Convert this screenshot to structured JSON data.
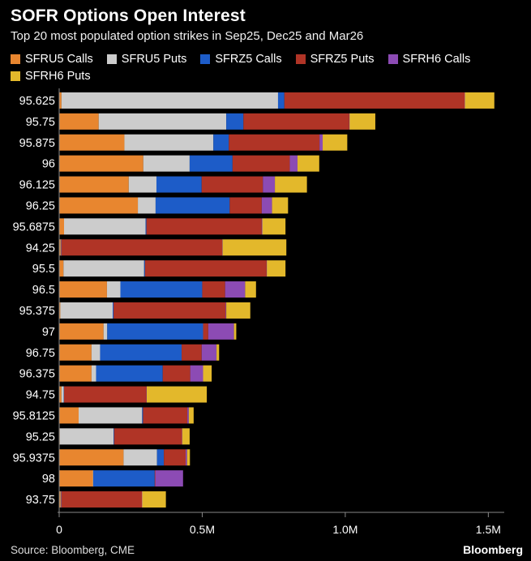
{
  "chart_data": {
    "type": "bar",
    "orientation": "horizontal",
    "stacked": true,
    "title": "SOFR Options Open Interest",
    "subtitle": "Top 20 most populated option strikes in Sep25, Dec25 and Mar26",
    "categories": [
      "95.625",
      "95.75",
      "95.875",
      "96",
      "96.125",
      "96.25",
      "95.6875",
      "94.25",
      "95.5",
      "96.5",
      "95.375",
      "97",
      "96.75",
      "96.375",
      "94.75",
      "95.8125",
      "95.25",
      "95.9375",
      "98",
      "93.75"
    ],
    "series": [
      {
        "name": "SFRU5 Calls",
        "color": "#e8862f",
        "values": [
          8000,
          138000,
          228000,
          294000,
          243000,
          275000,
          17000,
          5000,
          15000,
          167000,
          4000,
          155000,
          113000,
          113000,
          8000,
          68000,
          2000,
          225000,
          118000,
          5000
        ]
      },
      {
        "name": "SFRU5 Puts",
        "color": "#cccccc",
        "values": [
          757000,
          446000,
          311000,
          162000,
          97000,
          62000,
          285000,
          1000,
          282000,
          47000,
          183000,
          13000,
          30000,
          16000,
          8000,
          222000,
          188000,
          117000,
          1000,
          1000
        ]
      },
      {
        "name": "SFRZ5 Calls",
        "color": "#1d5cc8",
        "values": [
          22000,
          60000,
          54000,
          150000,
          158000,
          259000,
          3000,
          1000,
          3000,
          286000,
          3000,
          335000,
          285000,
          233000,
          1000,
          3000,
          2000,
          24000,
          215000,
          1000
        ]
      },
      {
        "name": "SFRZ5 Puts",
        "color": "#b03426",
        "values": [
          630000,
          370000,
          317000,
          200000,
          214000,
          112000,
          403000,
          563000,
          425000,
          80000,
          392000,
          18000,
          70000,
          96000,
          288000,
          155000,
          237000,
          76000,
          2000,
          282000
        ]
      },
      {
        "name": "SFRH6 Calls",
        "color": "#8c4bb4",
        "values": [
          1000,
          1000,
          11000,
          27000,
          42000,
          36000,
          2000,
          1000,
          1000,
          70000,
          2000,
          90000,
          52000,
          45000,
          1000,
          5000,
          1000,
          5000,
          97000,
          1000
        ]
      },
      {
        "name": "SFRH6 Puts",
        "color": "#e3b82b",
        "values": [
          103000,
          90000,
          86000,
          76000,
          112000,
          56000,
          81000,
          223000,
          65000,
          38000,
          84000,
          8000,
          9000,
          30000,
          210000,
          17000,
          26000,
          10000,
          0,
          83000
        ]
      }
    ],
    "xlim": [
      0,
      1550000
    ],
    "xticks": [
      0,
      500000,
      1000000,
      1500000
    ],
    "xtick_labels": [
      "0",
      "0.5M",
      "1.0M",
      "1.5M"
    ],
    "grid": false,
    "legend_position": "top"
  },
  "footer": {
    "source": "Source: Bloomberg, CME",
    "brand": "Bloomberg"
  }
}
